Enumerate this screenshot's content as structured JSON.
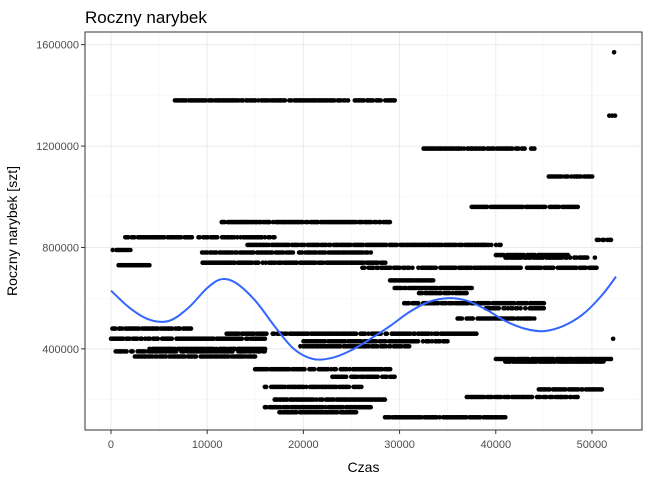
{
  "chart_data": {
    "type": "scatter",
    "title": "Roczny narybek",
    "xlabel": "Czas",
    "ylabel": "Roczny narybek [szt]",
    "xlim": [
      -2700,
      55200
    ],
    "ylim": [
      80000,
      1650000
    ],
    "x_ticks": [
      0,
      10000,
      20000,
      30000,
      40000,
      50000
    ],
    "x_tick_labels": [
      "0",
      "10000",
      "20000",
      "30000",
      "40000",
      "50000"
    ],
    "y_ticks": [
      400000,
      800000,
      1200000,
      1600000
    ],
    "y_tick_labels": [
      "400000",
      "800000",
      "1200000",
      "1600000"
    ],
    "grid": true,
    "legend": "none",
    "point_color": "#000000",
    "smooth_color": "#3366ff",
    "point_bands": [
      {
        "y": 1380000,
        "x_from": 6500,
        "x_to": 29500
      },
      {
        "y": 1190000,
        "x_from": 32500,
        "x_to": 44000
      },
      {
        "y": 1080000,
        "x_from": 45500,
        "x_to": 50000
      },
      {
        "y": 960000,
        "x_from": 37500,
        "x_to": 48500
      },
      {
        "y": 900000,
        "x_from": 11500,
        "x_to": 29000
      },
      {
        "y": 840000,
        "x_from": 1500,
        "x_to": 17000
      },
      {
        "y": 830000,
        "x_from": 50500,
        "x_to": 52000
      },
      {
        "y": 810000,
        "x_from": 14000,
        "x_to": 40500
      },
      {
        "y": 790000,
        "x_from": 200,
        "x_to": 2000
      },
      {
        "y": 780000,
        "x_from": 9500,
        "x_to": 27000
      },
      {
        "y": 770000,
        "x_from": 40000,
        "x_to": 47500
      },
      {
        "y": 760000,
        "x_from": 41000,
        "x_to": 49500
      },
      {
        "y": 740000,
        "x_from": 9500,
        "x_to": 28500
      },
      {
        "y": 730000,
        "x_from": 800,
        "x_to": 4000
      },
      {
        "y": 720000,
        "x_from": 26000,
        "x_to": 50500
      },
      {
        "y": 670000,
        "x_from": 29000,
        "x_to": 33500
      },
      {
        "y": 640000,
        "x_from": 29500,
        "x_to": 37500
      },
      {
        "y": 620000,
        "x_from": 32000,
        "x_to": 37000
      },
      {
        "y": 580000,
        "x_from": 30500,
        "x_to": 45000
      },
      {
        "y": 560000,
        "x_from": 39000,
        "x_to": 45000
      },
      {
        "y": 520000,
        "x_from": 36000,
        "x_to": 44000
      },
      {
        "y": 480000,
        "x_from": 0,
        "x_to": 8500
      },
      {
        "y": 460000,
        "x_from": 12000,
        "x_to": 38000
      },
      {
        "y": 440000,
        "x_from": 0,
        "x_to": 16000
      },
      {
        "y": 430000,
        "x_from": 20000,
        "x_to": 35000
      },
      {
        "y": 410000,
        "x_from": 19500,
        "x_to": 31000
      },
      {
        "y": 400000,
        "x_from": 4000,
        "x_to": 16000
      },
      {
        "y": 390000,
        "x_from": 500,
        "x_to": 16000
      },
      {
        "y": 370000,
        "x_from": 2500,
        "x_to": 15000
      },
      {
        "y": 360000,
        "x_from": 40000,
        "x_to": 52000
      },
      {
        "y": 350000,
        "x_from": 41000,
        "x_to": 51000
      },
      {
        "y": 320000,
        "x_from": 15000,
        "x_to": 29000
      },
      {
        "y": 290000,
        "x_from": 23000,
        "x_to": 29500
      },
      {
        "y": 250000,
        "x_from": 16000,
        "x_to": 26000
      },
      {
        "y": 240000,
        "x_from": 44000,
        "x_to": 51000
      },
      {
        "y": 210000,
        "x_from": 37000,
        "x_to": 48500
      },
      {
        "y": 200000,
        "x_from": 17000,
        "x_to": 28500
      },
      {
        "y": 170000,
        "x_from": 16000,
        "x_to": 27000
      },
      {
        "y": 150000,
        "x_from": 17500,
        "x_to": 25500
      },
      {
        "y": 130000,
        "x_from": 28500,
        "x_to": 41000
      }
    ],
    "extra_points": [
      {
        "x": 52300,
        "y": 1570000
      },
      {
        "x": 51800,
        "y": 1320000
      },
      {
        "x": 52100,
        "y": 1320000
      },
      {
        "x": 52400,
        "y": 1320000
      },
      {
        "x": 46800,
        "y": 210000
      },
      {
        "x": 51200,
        "y": 350000
      },
      {
        "x": 52200,
        "y": 440000
      },
      {
        "x": 50300,
        "y": 760000
      }
    ],
    "smooth_curve": [
      {
        "x": 0,
        "y": 630000
      },
      {
        "x": 2000,
        "y": 560000
      },
      {
        "x": 4000,
        "y": 515000
      },
      {
        "x": 6000,
        "y": 510000
      },
      {
        "x": 8000,
        "y": 560000
      },
      {
        "x": 10000,
        "y": 640000
      },
      {
        "x": 11500,
        "y": 675000
      },
      {
        "x": 13000,
        "y": 660000
      },
      {
        "x": 15000,
        "y": 590000
      },
      {
        "x": 17000,
        "y": 490000
      },
      {
        "x": 19000,
        "y": 400000
      },
      {
        "x": 21000,
        "y": 360000
      },
      {
        "x": 23000,
        "y": 365000
      },
      {
        "x": 25000,
        "y": 395000
      },
      {
        "x": 27000,
        "y": 440000
      },
      {
        "x": 29000,
        "y": 490000
      },
      {
        "x": 31000,
        "y": 545000
      },
      {
        "x": 33000,
        "y": 585000
      },
      {
        "x": 35000,
        "y": 600000
      },
      {
        "x": 37000,
        "y": 590000
      },
      {
        "x": 39000,
        "y": 555000
      },
      {
        "x": 41000,
        "y": 510000
      },
      {
        "x": 43000,
        "y": 480000
      },
      {
        "x": 45000,
        "y": 470000
      },
      {
        "x": 47000,
        "y": 490000
      },
      {
        "x": 49000,
        "y": 535000
      },
      {
        "x": 51000,
        "y": 610000
      },
      {
        "x": 52500,
        "y": 685000
      }
    ]
  }
}
